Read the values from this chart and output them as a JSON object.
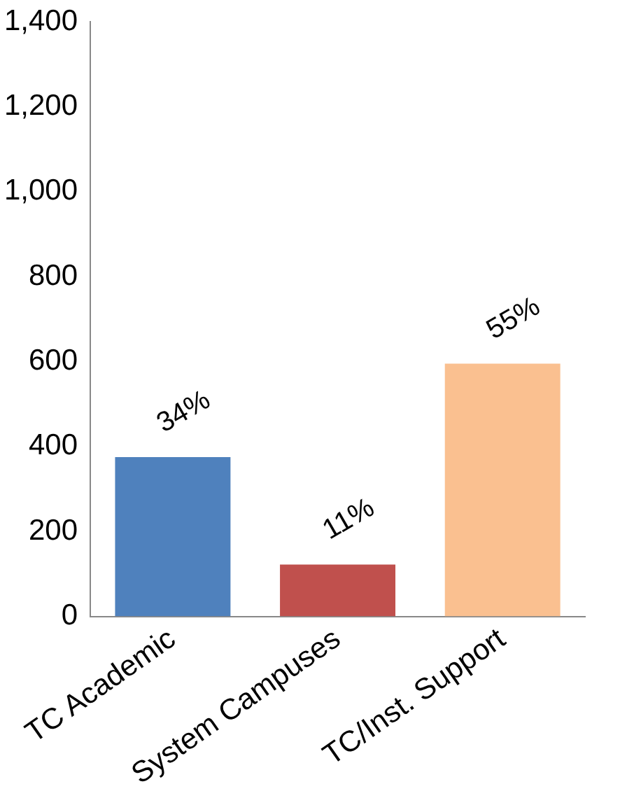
{
  "chart_data": {
    "type": "bar",
    "categories": [
      "TC Academic",
      "System Campuses",
      "TC/Inst. Support"
    ],
    "values": [
      375,
      122,
      595
    ],
    "colors": [
      "#4f81bd",
      "#c0504d",
      "#fac090"
    ],
    "annotations": [
      {
        "text": "34%",
        "x": "TC Academic",
        "y": 375
      },
      {
        "text": "11%",
        "x": "System Campuses",
        "y": 122
      },
      {
        "text": "55%",
        "x": "TC/Inst. Support",
        "y": 595
      }
    ],
    "ylim": [
      0,
      1400
    ],
    "yticks": [
      0,
      {
        "value": 200,
        "label": "200"
      },
      {
        "value": 400,
        "label": "400"
      },
      {
        "value": 600,
        "label": "600"
      },
      {
        "value": 800,
        "label": "800"
      },
      {
        "value": 1000,
        "label": "1,000"
      },
      {
        "value": 1200,
        "label": "1,200"
      },
      {
        "value": 1400,
        "label": "1,400"
      }
    ],
    "grid": false,
    "legend": false
  }
}
